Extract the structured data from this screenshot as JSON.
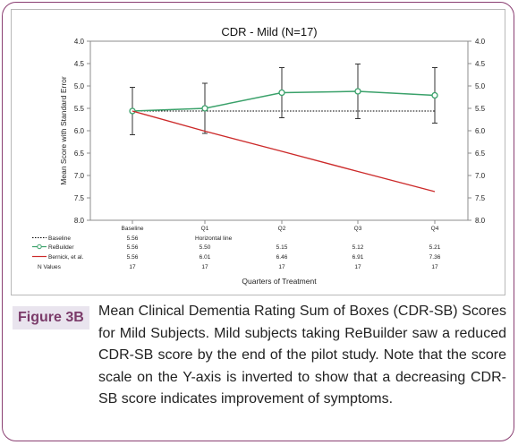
{
  "chart_data": {
    "type": "line",
    "title": "CDR - Mild (N=17)",
    "ylabel": "Mean Score with Standard Error",
    "xlabel": "Quarters of Treatment",
    "ylim": [
      4.0,
      8.0
    ],
    "y_inverted": true,
    "yticks": [
      "4.0",
      "4.5",
      "5.0",
      "5.5",
      "6.0",
      "6.5",
      "7.0",
      "7.5",
      "8.0"
    ],
    "categories": [
      "Baseline",
      "Q1",
      "Q2",
      "Q3",
      "Q4"
    ],
    "grid": false,
    "series": [
      {
        "name": "Baseline",
        "style": "dotted",
        "color": "#000000",
        "values": [
          5.56,
          5.56,
          5.56,
          5.56,
          5.56
        ]
      },
      {
        "name": "ReBuilder",
        "style": "solid-markers",
        "color": "#3aa16a",
        "values": [
          5.56,
          5.5,
          5.15,
          5.12,
          5.21
        ],
        "error": [
          0.53,
          0.56,
          0.56,
          0.61,
          0.62
        ]
      },
      {
        "name": "Bernick, et al.",
        "style": "solid",
        "color": "#cc2a2a",
        "values": [
          5.56,
          6.01,
          6.46,
          6.91,
          7.36
        ]
      }
    ],
    "table": {
      "rows": [
        {
          "label": "Baseline",
          "cells": [
            "5.56",
            "Horizontal line",
            "",
            "",
            ""
          ]
        },
        {
          "label": "ReBuilder",
          "cells": [
            "5.56",
            "5.50",
            "5.15",
            "5.12",
            "5.21"
          ]
        },
        {
          "label": "Bernick, et al.",
          "cells": [
            "5.56",
            "6.01",
            "6.46",
            "6.91",
            "7.36"
          ]
        },
        {
          "label": "N Values",
          "cells": [
            "17",
            "17",
            "17",
            "17",
            "17"
          ]
        }
      ]
    }
  },
  "figure": {
    "label": "Figure 3B",
    "caption": "Mean Clinical Dementia Rating Sum of Boxes (CDR-SB) Scores for Mild Subjects. Mild subjects taking ReBuilder saw a reduced CDR-SB score by the end of the pilot study. Note that the score scale on the Y-axis is inverted to show that a decreasing CDR-SB score indicates improvement of symptoms."
  }
}
